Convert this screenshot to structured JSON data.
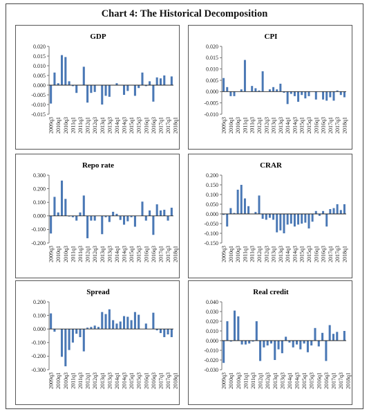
{
  "page": {
    "title": "Chart 4: The Historical Decomposition"
  },
  "colors": {
    "bar": "#4a78b5",
    "axis": "#555555",
    "zero": "#222222",
    "border": "#555555"
  },
  "chart_data": [
    {
      "type": "bar",
      "title": "GDP",
      "ylim": [
        -0.015,
        0.02
      ],
      "yticks": [
        "0.020",
        "0.015",
        "0.010",
        "0.005",
        "0.000",
        "-0.005",
        "-0.010",
        "-0.015"
      ],
      "ytick_values": [
        0.02,
        0.015,
        0.01,
        0.005,
        0.0,
        -0.005,
        -0.01,
        -0.015
      ],
      "xtick_labels": [
        "2009q3",
        "2010q1",
        "2010q3",
        "2011q1",
        "2011q3",
        "2012q1",
        "2012q3",
        "2013q1",
        "2013q3",
        "2014q1",
        "2014q3",
        "2015q1",
        "2015q3",
        "2016q1",
        "2016q3",
        "2017q1",
        "2017q3",
        "2018q1"
      ],
      "values": [
        -0.0095,
        0.0065,
        0.001,
        0.0155,
        0.0145,
        0.002,
        -0.0005,
        -0.004,
        0.0,
        0.0095,
        -0.009,
        -0.004,
        -0.0035,
        0.0,
        -0.01,
        -0.0055,
        -0.006,
        0.0,
        0.001,
        0.0,
        -0.005,
        -0.003,
        0.0,
        -0.0055,
        -0.0015,
        0.0065,
        -0.0005,
        0.002,
        -0.0085,
        0.004,
        0.0035,
        0.005,
        0.0,
        0.0045
      ]
    },
    {
      "type": "bar",
      "title": "CPI",
      "ylim": [
        -0.01,
        0.02
      ],
      "yticks": [
        "0.020",
        "0.015",
        "0.010",
        "0.005",
        "0.000",
        "-0.005",
        "-0.010"
      ],
      "ytick_values": [
        0.02,
        0.015,
        0.01,
        0.005,
        0.0,
        -0.005,
        -0.01
      ],
      "xtick_labels": [
        "2009q3",
        "2010q1",
        "2010q3",
        "2011q1",
        "2011q3",
        "2012q1",
        "2012q3",
        "2013q1",
        "2013q3",
        "2014q1",
        "2014q3",
        "2015q1",
        "2015q3",
        "2016q1",
        "2016q3",
        "2017q1",
        "2017q3",
        "2018q1"
      ],
      "values": [
        0.006,
        0.002,
        -0.002,
        -0.002,
        0.0,
        0.001,
        0.014,
        0.0,
        0.0025,
        0.0015,
        0.0005,
        0.009,
        0.0,
        0.001,
        0.002,
        0.001,
        0.0035,
        -0.0005,
        -0.0055,
        -0.001,
        -0.002,
        -0.0045,
        -0.0015,
        -0.003,
        -0.002,
        0.0,
        -0.0035,
        0.0,
        -0.0035,
        -0.004,
        -0.0025,
        -0.004,
        0.0005,
        -0.0015,
        -0.0025
      ]
    },
    {
      "type": "bar",
      "title": "Repo rate",
      "ylim": [
        -0.2,
        0.3
      ],
      "yticks": [
        "0.300",
        "0.200",
        "0.100",
        "0.000",
        "-0.100",
        "-0.200"
      ],
      "ytick_values": [
        0.3,
        0.2,
        0.1,
        0.0,
        -0.1,
        -0.2
      ],
      "xtick_labels": [
        "2009q3",
        "2010q1",
        "2010q3",
        "2011q1",
        "2011q3",
        "2012q1",
        "2012q3",
        "2013q1",
        "2013q3",
        "2014q1",
        "2014q3",
        "2015q1",
        "2015q3",
        "2016q1",
        "2016q3",
        "2017q1",
        "2017q3",
        "2018q1"
      ],
      "values": [
        -0.13,
        0.14,
        0.025,
        0.26,
        0.125,
        -0.005,
        -0.01,
        -0.035,
        0.025,
        0.15,
        -0.165,
        -0.035,
        -0.035,
        0.0,
        -0.135,
        -0.01,
        -0.045,
        0.03,
        0.015,
        -0.03,
        -0.065,
        -0.04,
        -0.01,
        -0.08,
        0.0,
        0.105,
        -0.035,
        0.04,
        -0.14,
        0.085,
        0.04,
        0.045,
        -0.035,
        0.06
      ]
    },
    {
      "type": "bar",
      "title": "CRAR",
      "ylim": [
        -0.15,
        0.2
      ],
      "yticks": [
        "0.200",
        "0.150",
        "0.100",
        "0.050",
        "0.000",
        "-0.050",
        "-0.100",
        "-0.150"
      ],
      "ytick_values": [
        0.2,
        0.15,
        0.1,
        0.05,
        0.0,
        -0.05,
        -0.1,
        -0.15
      ],
      "xtick_labels": [
        "2009q3",
        "2010q1",
        "2010q3",
        "2011q1",
        "2011q3",
        "2012q1",
        "2012q3",
        "2013q1",
        "2013q3",
        "2014q1",
        "2014q3",
        "2015q1",
        "2015q3",
        "2016q1",
        "2016q3",
        "2017q1",
        "2017q3",
        "2018q1"
      ],
      "values": [
        -0.005,
        -0.065,
        0.03,
        0.005,
        0.125,
        0.15,
        0.08,
        0.04,
        0.0,
        0.01,
        0.095,
        -0.025,
        -0.03,
        -0.02,
        -0.03,
        -0.095,
        -0.085,
        -0.1,
        -0.055,
        -0.05,
        -0.065,
        -0.055,
        -0.05,
        -0.045,
        -0.075,
        -0.04,
        0.015,
        -0.01,
        0.015,
        -0.065,
        0.025,
        0.03,
        0.05,
        0.02,
        0.05
      ]
    },
    {
      "type": "bar",
      "title": "Spread",
      "ylim": [
        -0.3,
        0.2
      ],
      "yticks": [
        "0.200",
        "0.100",
        "0.000",
        "-0.100",
        "-0.200",
        "-0.300"
      ],
      "ytick_values": [
        0.2,
        0.1,
        0.0,
        -0.1,
        -0.2,
        -0.3
      ],
      "xtick_labels": [
        "2009q3",
        "2010q1",
        "2010q3",
        "2011q1",
        "2011q3",
        "2012q1",
        "2012q3",
        "2013q1",
        "2013q3",
        "2014q1",
        "2014q3",
        "2015q1",
        "2015q3",
        "2016q1",
        "2016q3",
        "2017q1",
        "2017q3",
        "2018q1"
      ],
      "values": [
        0.115,
        -0.02,
        0.0,
        -0.205,
        -0.275,
        -0.155,
        -0.1,
        -0.035,
        -0.06,
        -0.165,
        0.01,
        0.015,
        0.025,
        0.015,
        0.125,
        0.11,
        0.145,
        0.065,
        0.04,
        0.055,
        0.095,
        0.09,
        0.065,
        0.125,
        0.105,
        0.0,
        0.04,
        0.0,
        0.12,
        -0.01,
        -0.03,
        -0.06,
        -0.04,
        -0.06
      ]
    },
    {
      "type": "bar",
      "title": "Real credit",
      "ylim": [
        -0.03,
        0.04
      ],
      "yticks": [
        "0.040",
        "0.030",
        "0.020",
        "0.010",
        "0.000",
        "-0.010",
        "-0.020",
        "-0.030"
      ],
      "ytick_values": [
        0.04,
        0.03,
        0.02,
        0.01,
        0.0,
        -0.01,
        -0.02,
        -0.03
      ],
      "xtick_labels": [
        "2009q3",
        "2010q1",
        "2010q3",
        "2011q1",
        "2011q3",
        "2012q1",
        "2012q3",
        "2013q1",
        "2013q3",
        "2014q1",
        "2014q3",
        "2015q1",
        "2015q3",
        "2016q1",
        "2016q3",
        "2017q1",
        "2017q3",
        "2018q1"
      ],
      "values": [
        -0.023,
        0.02,
        -0.001,
        0.031,
        0.025,
        -0.004,
        -0.004,
        -0.003,
        -0.001,
        0.02,
        -0.021,
        -0.007,
        -0.005,
        -0.003,
        -0.02,
        -0.009,
        -0.013,
        0.004,
        -0.002,
        -0.007,
        -0.004,
        -0.009,
        -0.003,
        -0.012,
        -0.005,
        0.013,
        -0.006,
        0.008,
        -0.021,
        0.016,
        0.007,
        0.009,
        0.0,
        0.01
      ]
    }
  ]
}
